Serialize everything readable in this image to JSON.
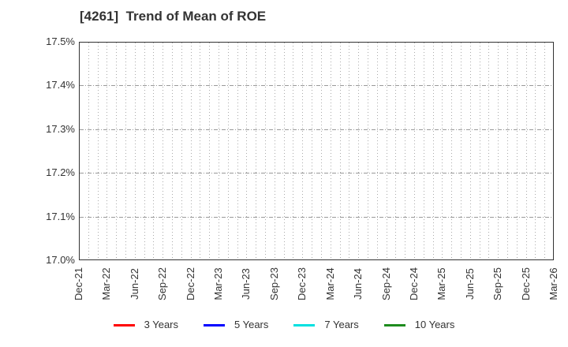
{
  "page": {
    "background": "#ffffff"
  },
  "colors": {
    "title_text": "#333333",
    "tick_text": "#333333",
    "axis_border": "#333333",
    "grid_vertical": "#aaaaaa",
    "grid_horizontal": "#999999"
  },
  "chart_data": {
    "type": "line",
    "title": "[4261]  Trend of Mean of ROE",
    "xlabel": "",
    "ylabel": "",
    "x_tick_labels": [
      "Dec-21",
      "Mar-22",
      "Jun-22",
      "Sep-22",
      "Dec-22",
      "Mar-23",
      "Jun-23",
      "Sep-23",
      "Dec-23",
      "Mar-24",
      "Jun-24",
      "Sep-24",
      "Dec-24",
      "Mar-25",
      "Jun-25",
      "Sep-25",
      "Dec-25",
      "Mar-26"
    ],
    "y_tick_labels": [
      "17.0%",
      "17.1%",
      "17.2%",
      "17.3%",
      "17.4%",
      "17.5%"
    ],
    "ylim": [
      17.0,
      17.5
    ],
    "grid": {
      "vertical_style": "dotted",
      "vertical_minor_divisions_per_label": 3,
      "horizontal_style": "dash-dot",
      "horizontal_at": [
        17.1,
        17.2,
        17.3,
        17.4
      ]
    },
    "legend_position": "bottom",
    "series": [
      {
        "name": "3 Years",
        "color": "#ff0000",
        "values": []
      },
      {
        "name": "5 Years",
        "color": "#0000ff",
        "values": []
      },
      {
        "name": "7 Years",
        "color": "#00e0e0",
        "values": []
      },
      {
        "name": "10 Years",
        "color": "#1e8c1e",
        "values": []
      }
    ]
  }
}
